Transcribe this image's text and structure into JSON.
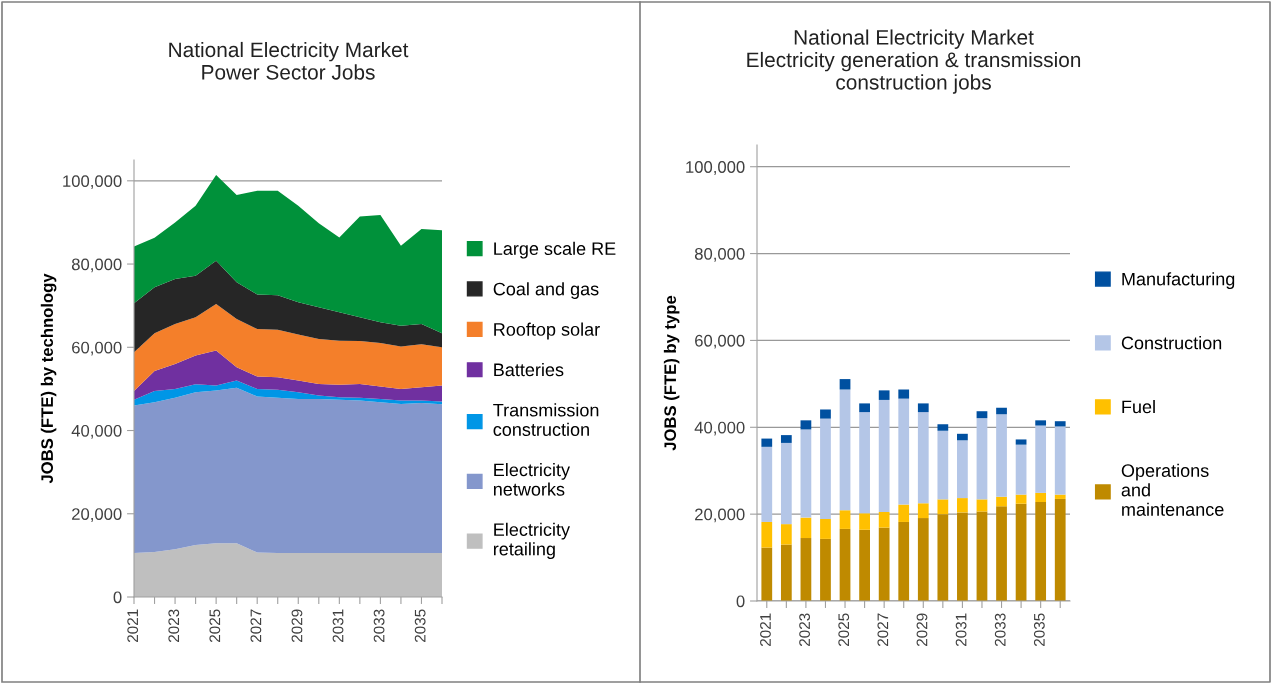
{
  "chart_data": [
    {
      "type": "area",
      "stacked": true,
      "title": "National Electricity Market\nPower Sector Jobs",
      "ylabel": "JOBS (FTE) by technology",
      "categories": [
        "2021",
        null,
        "2023",
        null,
        "2025",
        null,
        "2027",
        null,
        "2029",
        null,
        "2031",
        null,
        "2033",
        null,
        "2035",
        null
      ],
      "series": [
        {
          "name": "Electricity\nretailing",
          "color": "#bfbfbf",
          "values": [
            10600,
            10800,
            11500,
            12500,
            12900,
            12900,
            10700,
            10600,
            10600,
            10600,
            10600,
            10600,
            10600,
            10600,
            10600,
            10600
          ]
        },
        {
          "name": "Electricity\nnetworks",
          "color": "#8497cc",
          "values": [
            35400,
            36000,
            36400,
            36700,
            36700,
            37400,
            37500,
            37300,
            37000,
            37000,
            36800,
            36600,
            36200,
            35800,
            36000,
            35700
          ]
        },
        {
          "name": "Transmission\nconstruction",
          "color": "#0096e6",
          "values": [
            1400,
            2700,
            2100,
            1900,
            1200,
            1700,
            1800,
            1900,
            1600,
            800,
            600,
            700,
            800,
            800,
            600,
            700
          ]
        },
        {
          "name": "Batteries",
          "color": "#7030a0",
          "values": [
            2100,
            4800,
            6000,
            6900,
            8400,
            3200,
            3000,
            3000,
            2800,
            2800,
            3000,
            3300,
            3000,
            2800,
            3200,
            3800
          ]
        },
        {
          "name": "Rooftop solar",
          "color": "#f47f2a",
          "values": [
            9300,
            9100,
            9600,
            9200,
            11200,
            11600,
            11400,
            11400,
            11100,
            10800,
            10600,
            10300,
            10400,
            10200,
            10300,
            9200
          ]
        },
        {
          "name": "Coal and gas",
          "color": "#262626",
          "values": [
            11800,
            11000,
            10800,
            10000,
            10400,
            8800,
            8300,
            8300,
            7700,
            7600,
            6800,
            5700,
            5000,
            5000,
            4900,
            3400
          ]
        },
        {
          "name": "Large scale RE",
          "color": "#00913a",
          "values": [
            13600,
            11900,
            13600,
            16800,
            20600,
            21000,
            24900,
            25100,
            23200,
            20200,
            18000,
            24200,
            25800,
            19200,
            22800,
            24700
          ]
        }
      ],
      "ylim": [
        0,
        105000
      ],
      "yticks": [
        {
          "value": 0,
          "label": "0"
        },
        {
          "value": 20000,
          "label": "20,000"
        },
        {
          "value": 40000,
          "label": "40,000"
        },
        {
          "value": 60000,
          "label": "60,000"
        },
        {
          "value": 80000,
          "label": "80,000"
        },
        {
          "value": 100000,
          "label": "100,000"
        }
      ],
      "grid": "y",
      "legend": "right"
    },
    {
      "type": "bar",
      "stacked": true,
      "title": "National Electricity Market\nElectricity generation & transmission\nconstruction jobs",
      "ylabel": "JOBS (FTE) by type",
      "categories": [
        "2021",
        null,
        "2023",
        null,
        "2025",
        null,
        "2027",
        null,
        "2029",
        null,
        "2031",
        null,
        "2033",
        null,
        "2035",
        null
      ],
      "series": [
        {
          "name": "Operations\nand\nmaintenance",
          "color": "#bf8a00",
          "values": [
            12300,
            13000,
            14500,
            14300,
            16600,
            16400,
            16900,
            18200,
            19100,
            20000,
            20400,
            20600,
            21800,
            22400,
            22800,
            23500
          ]
        },
        {
          "name": "Fuel",
          "color": "#ffc000",
          "values": [
            5900,
            4700,
            4700,
            4600,
            4300,
            3800,
            3600,
            4000,
            3400,
            3400,
            3300,
            2800,
            2200,
            2100,
            2100,
            1000
          ]
        },
        {
          "name": "Construction",
          "color": "#b4c6e7",
          "values": [
            17300,
            18700,
            20300,
            23100,
            27800,
            23300,
            25800,
            24400,
            21000,
            15800,
            13300,
            18700,
            19000,
            11500,
            15500,
            15700
          ]
        },
        {
          "name": "Manufacturing",
          "color": "#0050a0",
          "values": [
            1900,
            1800,
            2100,
            2100,
            2400,
            2000,
            2200,
            2100,
            2000,
            1500,
            1500,
            1600,
            1500,
            1200,
            1200,
            1200
          ]
        }
      ],
      "ylim": [
        0,
        105000
      ],
      "yticks": [
        {
          "value": 0,
          "label": "0"
        },
        {
          "value": 20000,
          "label": "20,000"
        },
        {
          "value": 40000,
          "label": "40,000"
        },
        {
          "value": 60000,
          "label": "60,000"
        },
        {
          "value": 80000,
          "label": "80,000"
        },
        {
          "value": 100000,
          "label": "100,000"
        }
      ],
      "grid": "y",
      "legend": "right"
    }
  ]
}
